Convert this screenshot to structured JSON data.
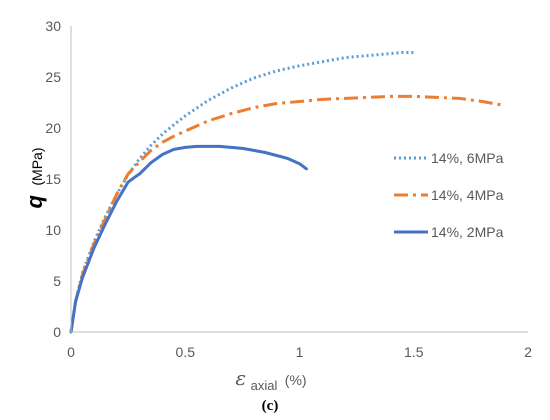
{
  "chart_data": {
    "type": "line",
    "caption": "(c)",
    "ylabel_symbol": "q",
    "ylabel_unit": "(MPa)",
    "xlabel_symbol": "ε",
    "xlabel_subscript": "axial",
    "xlabel_unit": "(%)",
    "xlim": [
      0,
      2
    ],
    "ylim": [
      0,
      30
    ],
    "xticks": [
      "0",
      "0.5",
      "1",
      "1.5",
      "2"
    ],
    "yticks": [
      "0",
      "5",
      "10",
      "15",
      "20",
      "25",
      "30"
    ],
    "grid": false,
    "legend_position": "right",
    "series": [
      {
        "name": "14%, 6MPa",
        "color": "#5B9BD5",
        "style": "dotted",
        "x": [
          0,
          0.02,
          0.05,
          0.1,
          0.15,
          0.2,
          0.25,
          0.3,
          0.35,
          0.4,
          0.45,
          0.5,
          0.6,
          0.7,
          0.8,
          0.9,
          1.0,
          1.1,
          1.2,
          1.3,
          1.4,
          1.45,
          1.5
        ],
        "y": [
          0,
          3,
          5.8,
          8.8,
          11.3,
          13.5,
          15.4,
          17.0,
          18.3,
          19.4,
          20.3,
          21.2,
          22.7,
          23.9,
          24.9,
          25.6,
          26.1,
          26.5,
          26.9,
          27.1,
          27.3,
          27.4,
          27.4
        ]
      },
      {
        "name": "14%, 4MPa",
        "color": "#ED7D31",
        "style": "dash-dot",
        "x": [
          0,
          0.02,
          0.05,
          0.1,
          0.15,
          0.2,
          0.25,
          0.3,
          0.35,
          0.4,
          0.45,
          0.5,
          0.6,
          0.7,
          0.8,
          0.9,
          1.0,
          1.1,
          1.2,
          1.3,
          1.4,
          1.5,
          1.6,
          1.7,
          1.8,
          1.9
        ],
        "y": [
          0,
          3,
          5.6,
          8.6,
          11.1,
          13.5,
          15.5,
          16.7,
          17.8,
          18.6,
          19.2,
          19.7,
          20.7,
          21.4,
          22.0,
          22.4,
          22.6,
          22.8,
          22.9,
          23.0,
          23.1,
          23.1,
          23.0,
          22.9,
          22.6,
          22.2
        ]
      },
      {
        "name": "14%, 2MPa",
        "color": "#4472C4",
        "style": "solid",
        "x": [
          0,
          0.02,
          0.05,
          0.1,
          0.15,
          0.2,
          0.25,
          0.28,
          0.3,
          0.35,
          0.4,
          0.45,
          0.5,
          0.55,
          0.6,
          0.65,
          0.7,
          0.75,
          0.8,
          0.85,
          0.9,
          0.95,
          1.0,
          1.03
        ],
        "y": [
          0,
          3,
          5.3,
          8.2,
          10.6,
          12.8,
          14.7,
          15.2,
          15.5,
          16.6,
          17.4,
          17.9,
          18.1,
          18.2,
          18.2,
          18.2,
          18.1,
          18.0,
          17.8,
          17.6,
          17.3,
          17.0,
          16.5,
          16.0
        ]
      }
    ]
  }
}
